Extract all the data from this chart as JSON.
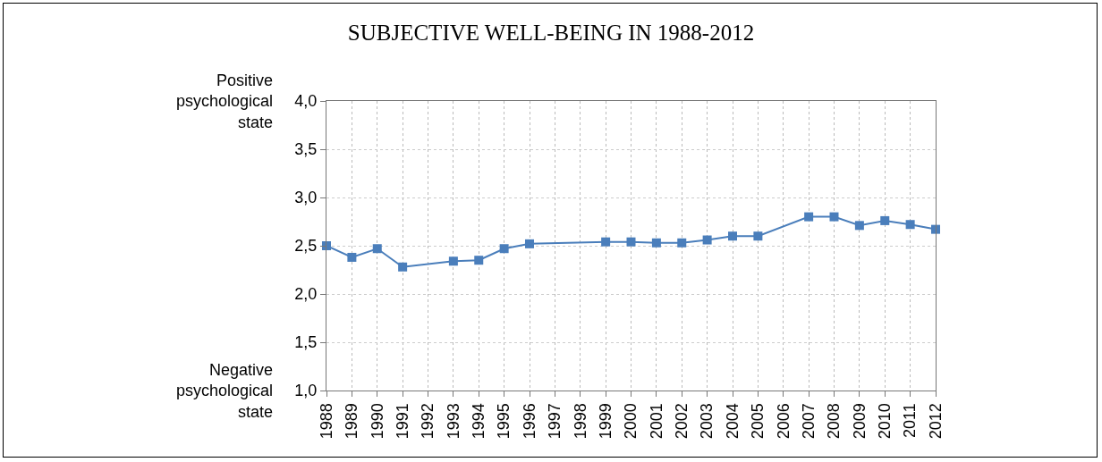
{
  "chart_data": {
    "type": "line",
    "title": "SUBJECTIVE WELL-BEING IN 1988-2012",
    "annotations": [
      "Positive\npsychological\nstate",
      "Negative\npsychological\nstate"
    ],
    "x": [
      1988,
      1989,
      1990,
      1991,
      1993,
      1994,
      1995,
      1996,
      1999,
      2000,
      2001,
      2002,
      2003,
      2004,
      2005,
      2007,
      2008,
      2009,
      2010,
      2011,
      2012
    ],
    "series": [
      {
        "color": "#4a7ebb",
        "values": [
          2.5,
          2.38,
          2.47,
          2.28,
          2.34,
          2.35,
          2.47,
          2.52,
          2.54,
          2.54,
          2.53,
          2.53,
          2.56,
          2.6,
          2.6,
          2.8,
          2.8,
          2.71,
          2.76,
          2.72,
          2.67
        ]
      }
    ],
    "xlim": [
      1988,
      2012
    ],
    "xticks": [
      1988,
      1989,
      1990,
      1991,
      1992,
      1993,
      1994,
      1995,
      1996,
      1997,
      1998,
      1999,
      2000,
      2001,
      2002,
      2003,
      2004,
      2005,
      2006,
      2007,
      2008,
      2009,
      2010,
      2011,
      2012
    ],
    "ylim": [
      1.0,
      4.0
    ],
    "yticks": [
      {
        "value": 1.0,
        "label": "1,0"
      },
      {
        "value": 1.5,
        "label": "1,5"
      },
      {
        "value": 2.0,
        "label": "2,0"
      },
      {
        "value": 2.5,
        "label": "2,5"
      },
      {
        "value": 3.0,
        "label": "3,0"
      },
      {
        "value": 3.5,
        "label": "3,5"
      },
      {
        "value": 4.0,
        "label": "4,0"
      }
    ],
    "grid": true,
    "marker": "square",
    "line_style": "solid"
  }
}
